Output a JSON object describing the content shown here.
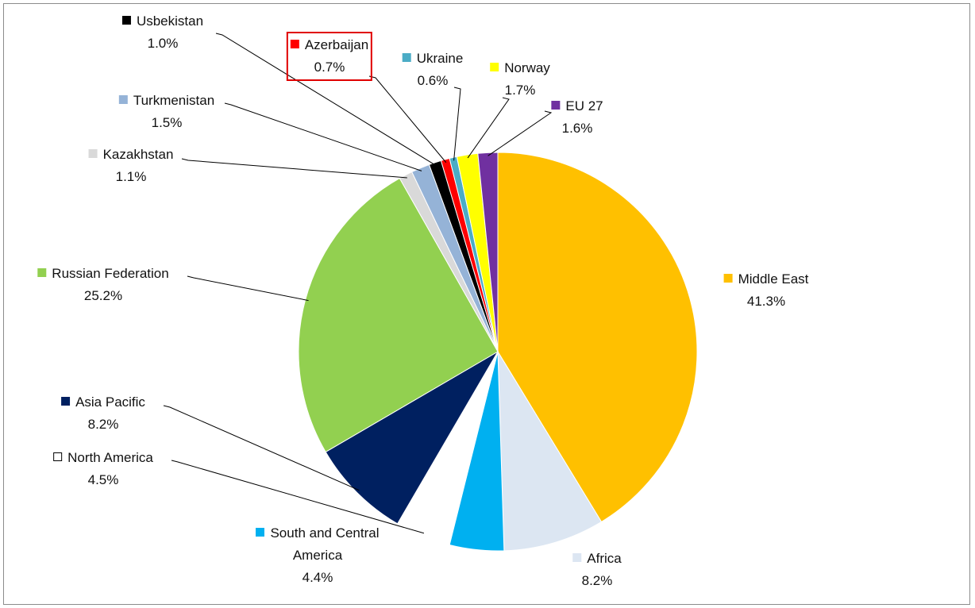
{
  "chart_data": {
    "type": "pie",
    "categories": [
      "Middle East",
      "Africa",
      "South and Central America",
      "North America",
      "Asia Pacific",
      "Russian Federation",
      "Kazakhstan",
      "Turkmenistan",
      "Usbekistan",
      "Azerbaijan",
      "Ukraine",
      "Norway",
      "EU 27"
    ],
    "values": [
      41.3,
      8.2,
      4.4,
      4.5,
      8.2,
      25.2,
      1.1,
      1.5,
      1.0,
      0.7,
      0.6,
      1.7,
      1.6
    ],
    "value_labels": [
      "41.3%",
      "8.2%",
      "4.4%",
      "4.5%",
      "8.2%",
      "25.2%",
      "1.1%",
      "1.5%",
      "1.0%",
      "0.7%",
      "0.6%",
      "1.7%",
      "1.6%"
    ],
    "colors": [
      "#ffc000",
      "#dce6f2",
      "#00b0f0",
      "#ffffff",
      "#002060",
      "#92d050",
      "#d9d9d9",
      "#95b3d7",
      "#000000",
      "#ff0000",
      "#4bacc6",
      "#ffff00",
      "#7030a0"
    ],
    "highlight": "Azerbaijan"
  }
}
